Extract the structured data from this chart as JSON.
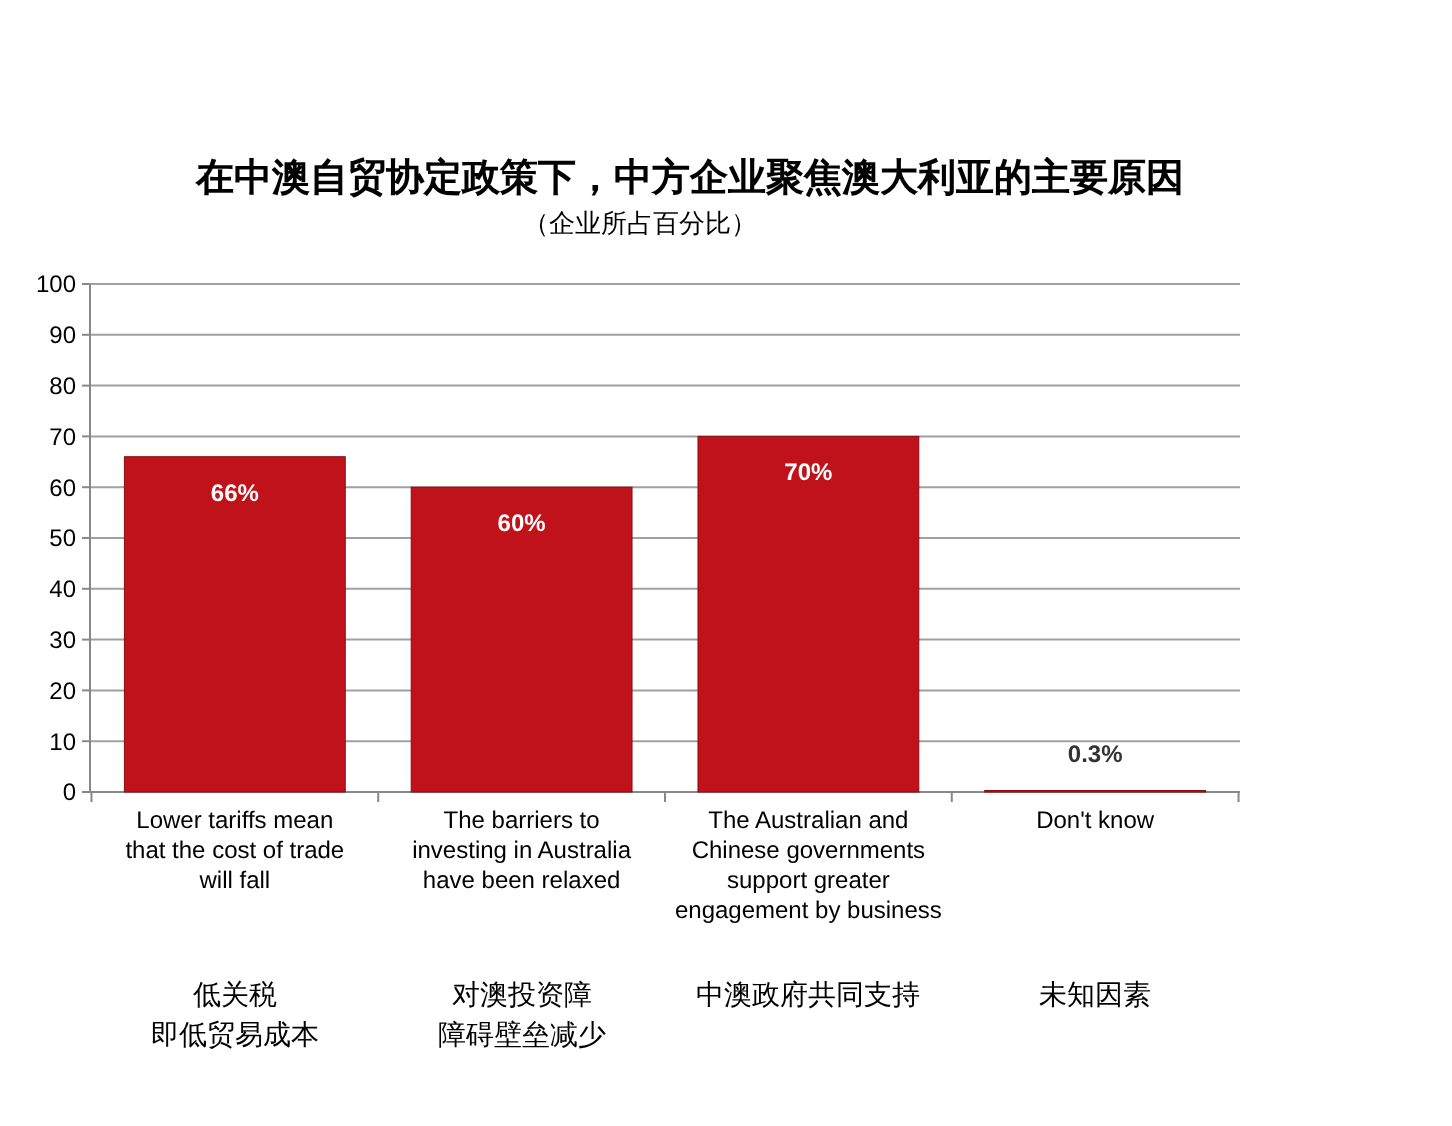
{
  "chart_data": {
    "type": "bar",
    "title": "在中澳自贸协定政策下，中方企业聚焦澳大利亚的主要原因",
    "subtitle": "（企业所占百分比）",
    "categories": [
      "Lower tariffs mean that the cost of trade will fall",
      "The barriers to investing in Australia have been relaxed",
      "The Australian and Chinese governments support greater engagement by business",
      "Don't know"
    ],
    "values": [
      66,
      60,
      70,
      0.3
    ],
    "value_labels": [
      "66%",
      "60%",
      "70%",
      "0.3%"
    ],
    "color": "#c0121b",
    "ylim": [
      0,
      100
    ],
    "yticks": [
      0,
      10,
      20,
      30,
      40,
      50,
      60,
      70,
      80,
      90,
      100
    ],
    "grid": "y",
    "annotations": [
      "低关税",
      "即低贸易成本",
      "对澳投资障",
      "障碍壁垒减少",
      "中澳政府共同支持",
      "未知因素"
    ]
  }
}
